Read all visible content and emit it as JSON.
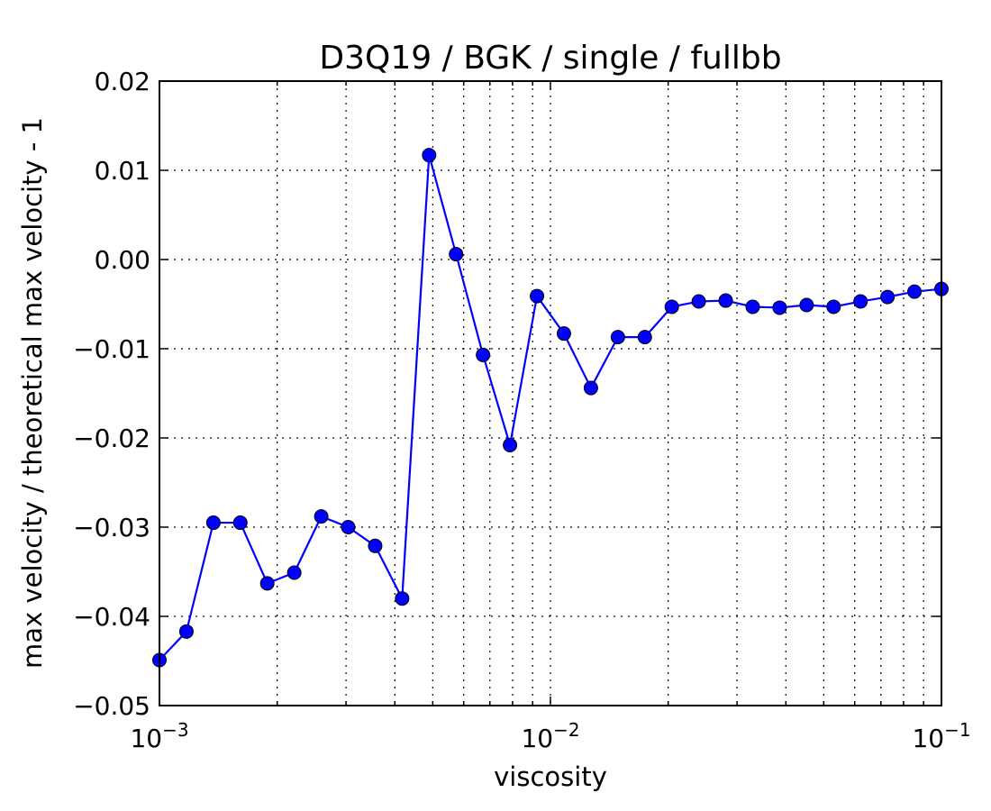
{
  "chart_data": {
    "type": "line",
    "title": "D3Q19 / BGK / single / fullbb",
    "xlabel": "viscosity",
    "ylabel": "max velocity / theoretical max velocity - 1",
    "x_scale": "log",
    "xlim": [
      0.001,
      0.1
    ],
    "ylim": [
      -0.05,
      0.02
    ],
    "grid": true,
    "grid_style": "dotted",
    "x_ticks": [
      {
        "value": 0.001,
        "base": "10",
        "exp": "−3"
      },
      {
        "value": 0.01,
        "base": "10",
        "exp": "−2"
      },
      {
        "value": 0.1,
        "base": "10",
        "exp": "−1"
      }
    ],
    "y_ticks": [
      {
        "value": 0.02,
        "label": "0.02"
      },
      {
        "value": 0.01,
        "label": "0.01"
      },
      {
        "value": 0.0,
        "label": "0.00"
      },
      {
        "value": -0.01,
        "label": "−0.01"
      },
      {
        "value": -0.02,
        "label": "−0.02"
      },
      {
        "value": -0.03,
        "label": "−0.03"
      },
      {
        "value": -0.04,
        "label": "−0.04"
      },
      {
        "value": -0.05,
        "label": "−0.05"
      }
    ],
    "series": [
      {
        "color": "#0000ff",
        "marker": "circle",
        "x": [
          0.001,
          0.001172,
          0.001374,
          0.00161,
          0.001887,
          0.002212,
          0.002593,
          0.003039,
          0.003562,
          0.004175,
          0.004894,
          0.005736,
          0.006723,
          0.00788,
          0.009237,
          0.010826,
          0.01269,
          0.014874,
          0.017433,
          0.020434,
          0.02395,
          0.028072,
          0.032903,
          0.038566,
          0.045204,
          0.052984,
          0.062102,
          0.07279,
          0.085317,
          0.1
        ],
        "y": [
          -0.0449,
          -0.0417,
          -0.0295,
          -0.0295,
          -0.0363,
          -0.0351,
          -0.0288,
          -0.03,
          -0.0321,
          -0.038,
          0.0117,
          0.0006,
          -0.0107,
          -0.0208,
          -0.0041,
          -0.0083,
          -0.0144,
          -0.0087,
          -0.0087,
          -0.0053,
          -0.0047,
          -0.0046,
          -0.0053,
          -0.0054,
          -0.0051,
          -0.0053,
          -0.0047,
          -0.0042,
          -0.0036,
          -0.0033
        ]
      }
    ]
  }
}
